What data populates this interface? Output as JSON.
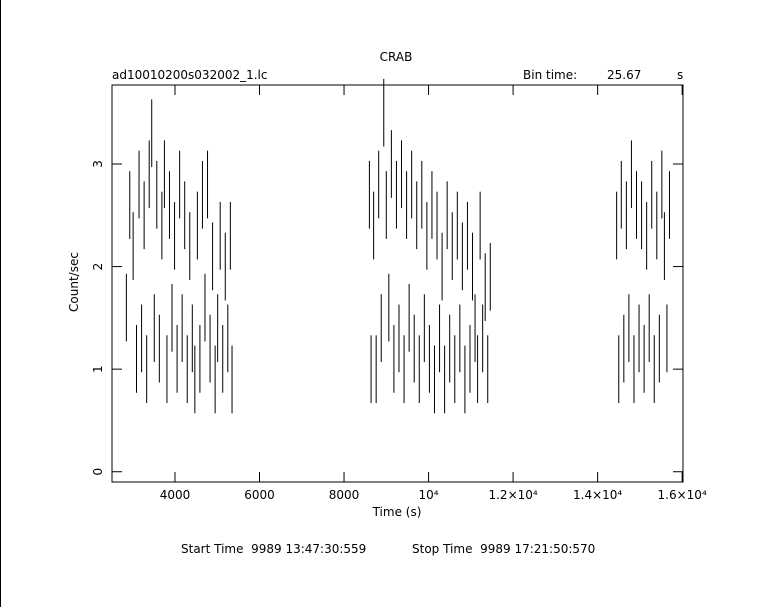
{
  "chart_data": {
    "type": "errorbar",
    "title": "CRAB",
    "file_name": "ad10010200s032002_1.lc",
    "bin_time_label": "Bin time:",
    "bin_time": "25.67",
    "bin_time_unit": "s",
    "xlabel": "Time (s)",
    "ylabel": "Count/sec",
    "start_time": "Start Time  9989 13:47:30:559",
    "stop_time": "Stop Time  9989 17:21:50:570",
    "color": "#000000",
    "xlim": [
      2510,
      16020
    ],
    "ylim": [
      -0.1,
      3.77
    ],
    "xticks": [
      4000,
      6000,
      8000,
      {
        "value": 10000,
        "label": "10⁴"
      },
      {
        "value": 12000,
        "label": "1.2×10⁴"
      },
      {
        "value": 14000,
        "label": "1.4×10⁴"
      },
      {
        "value": 16000,
        "label": "1.6×10⁴"
      }
    ],
    "yticks": [
      0,
      1,
      2,
      3
    ],
    "yerr": 0.33,
    "x": [
      2850,
      2930,
      3010,
      3090,
      3150,
      3210,
      3270,
      3330,
      3390,
      3450,
      3510,
      3570,
      3630,
      3690,
      3750,
      3810,
      3870,
      3930,
      3990,
      4050,
      4110,
      4170,
      4230,
      4290,
      4350,
      4410,
      4470,
      4530,
      4590,
      4650,
      4710,
      4770,
      4830,
      4890,
      4950,
      5010,
      5070,
      5130,
      5190,
      5250,
      5310,
      5350,
      8600,
      8640,
      8700,
      8760,
      8820,
      8880,
      8940,
      9000,
      9060,
      9120,
      9180,
      9240,
      9300,
      9360,
      9420,
      9480,
      9540,
      9600,
      9660,
      9720,
      9780,
      9840,
      9900,
      9960,
      10020,
      10080,
      10140,
      10200,
      10260,
      10320,
      10380,
      10440,
      10500,
      10560,
      10620,
      10680,
      10740,
      10800,
      10860,
      10920,
      10980,
      11040,
      11100,
      11160,
      11220,
      11280,
      11340,
      11400,
      11460,
      14450,
      14500,
      14560,
      14620,
      14680,
      14740,
      14800,
      14860,
      14920,
      14980,
      15040,
      15100,
      15160,
      15220,
      15280,
      15340,
      15400,
      15460,
      15520,
      15580,
      15640,
      15700
    ],
    "values": [
      1.6,
      2.6,
      2.2,
      1.1,
      2.8,
      1.3,
      2.5,
      1.0,
      2.9,
      3.3,
      1.4,
      2.7,
      1.2,
      2.4,
      2.9,
      1.0,
      2.6,
      1.5,
      2.3,
      1.1,
      2.8,
      1.4,
      2.5,
      1.0,
      2.2,
      1.3,
      0.9,
      2.4,
      1.1,
      2.7,
      1.6,
      2.8,
      1.2,
      2.1,
      0.9,
      1.4,
      2.3,
      1.1,
      2.0,
      1.3,
      2.3,
      0.9,
      2.7,
      1.0,
      2.4,
      1.0,
      2.8,
      1.4,
      3.5,
      2.6,
      1.6,
      3.0,
      1.1,
      2.7,
      1.3,
      2.9,
      1.0,
      2.6,
      1.5,
      2.8,
      1.2,
      2.5,
      1.0,
      2.7,
      1.4,
      2.3,
      1.1,
      2.6,
      0.9,
      2.4,
      1.3,
      2.0,
      0.9,
      2.5,
      1.2,
      2.2,
      1.0,
      2.4,
      1.3,
      2.1,
      0.9,
      2.3,
      1.1,
      2.0,
      1.4,
      1.0,
      2.4,
      1.3,
      1.8,
      1.0,
      1.9,
      2.4,
      1.0,
      2.7,
      1.2,
      2.5,
      1.4,
      2.9,
      1.0,
      2.6,
      1.3,
      2.5,
      1.1,
      2.3,
      1.4,
      2.7,
      1.0,
      2.4,
      1.2,
      2.8,
      2.2,
      1.3,
      2.6
    ]
  }
}
